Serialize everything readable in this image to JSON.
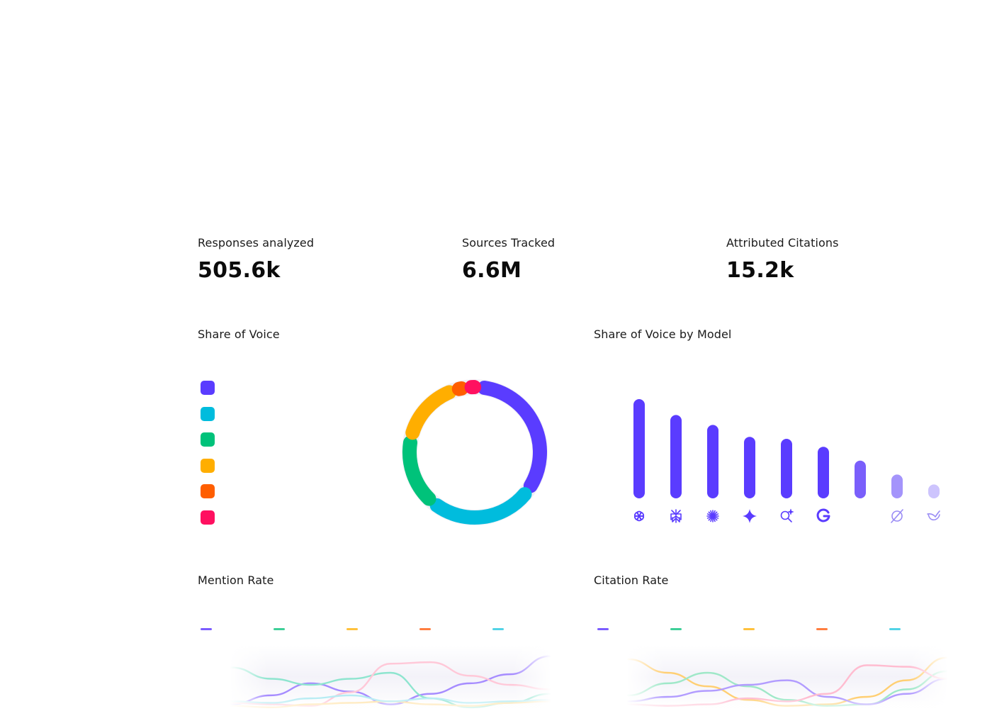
{
  "stats": [
    {
      "label": "Responses analyzed",
      "value": "505.6k"
    },
    {
      "label": "Sources Tracked",
      "value": "6.6M"
    },
    {
      "label": "Attributed Citations",
      "value": "15.2k"
    }
  ],
  "sections": {
    "share_of_voice": "Share of Voice",
    "share_by_model": "Share of Voice by Model",
    "mention_rate": "Mention Rate",
    "citation_rate": "Citation Rate"
  },
  "colors": {
    "purple": "#5a3cff",
    "cyan": "#00bcdd",
    "green": "#00c27a",
    "amber": "#ffae00",
    "orange": "#ff5e00",
    "pink": "#ff1060"
  },
  "chart_data": [
    {
      "id": "share_of_voice",
      "type": "pie",
      "variant": "donut",
      "values": [
        27,
        21,
        14,
        13,
        2.5,
        2.5
      ],
      "colors": [
        "#5a3cff",
        "#00bcdd",
        "#00c27a",
        "#ffae00",
        "#ff5e00",
        "#ff1060"
      ],
      "legend_placement": "left"
    },
    {
      "id": "share_of_voice_by_model",
      "type": "bar",
      "categories": [
        "openai-icon",
        "perplexity-icon",
        "anthropic-icon",
        "gemini-icon",
        "search-ai-icon",
        "google-icon",
        "",
        "grok-icon",
        "deepseek-icon"
      ],
      "values": [
        100,
        84,
        74,
        62,
        60,
        52,
        38,
        24,
        14
      ],
      "ylim": [
        0,
        100
      ],
      "colors": [
        "#5a3cff",
        "#5a3cff",
        "#5a3cff",
        "#5a3cff",
        "#5a3cff",
        "#5a3cff",
        "#7a5ffb",
        "#a494fb",
        "#cdc4fd"
      ]
    },
    {
      "id": "mention_rate",
      "type": "line",
      "x": [
        0,
        1,
        2,
        3,
        4,
        5,
        6,
        7,
        8
      ],
      "series": [
        {
          "color": "#a68cff",
          "values": [
            6,
            18,
            34,
            23,
            6,
            20,
            34,
            46,
            70
          ]
        },
        {
          "color": "#8ee5cf",
          "values": [
            55,
            40,
            32,
            40,
            48,
            14,
            2,
            8,
            20
          ]
        },
        {
          "color": "#ffc8d8",
          "values": [
            8,
            6,
            4,
            22,
            60,
            62,
            44,
            32,
            26
          ]
        },
        {
          "color": "#ffe1a3",
          "values": [
            4,
            2,
            6,
            8,
            10,
            6,
            4,
            8,
            10
          ]
        },
        {
          "color": "#b6ecf3",
          "values": [
            10,
            8,
            14,
            18,
            10,
            14,
            8,
            10,
            12
          ]
        }
      ],
      "legend_colors": [
        "#7b5cff",
        "#3ecf98",
        "#ffc13d",
        "#ff7e40",
        "#52d3e6"
      ]
    },
    {
      "id": "citation_rate",
      "type": "line",
      "x": [
        0,
        1,
        2,
        3,
        4,
        5,
        6,
        7,
        8
      ],
      "series": [
        {
          "color": "#ffcf73",
          "values": [
            66,
            48,
            30,
            12,
            4,
            6,
            16,
            38,
            68
          ]
        },
        {
          "color": "#9fe8c8",
          "values": [
            18,
            34,
            48,
            30,
            12,
            4,
            6,
            26,
            50
          ]
        },
        {
          "color": "#b29cff",
          "values": [
            10,
            16,
            24,
            32,
            38,
            16,
            6,
            20,
            40
          ]
        },
        {
          "color": "#ffbcd0",
          "values": [
            6,
            4,
            6,
            14,
            10,
            20,
            58,
            56,
            40
          ]
        }
      ],
      "legend_colors": [
        "#7b5cff",
        "#3ecf98",
        "#ffc13d",
        "#ff7e40",
        "#52d3e6"
      ]
    }
  ]
}
